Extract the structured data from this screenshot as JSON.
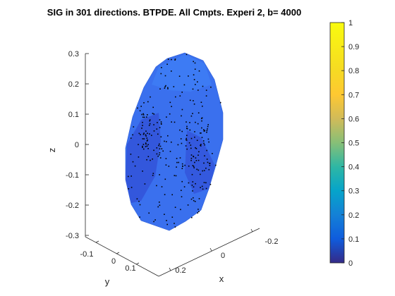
{
  "chart_data": {
    "type": "3d-surface-scatter",
    "title": "SIG in 301 directions. BTPDE. All Cmpts. Experi 2, b= 4000",
    "xlabel": "x",
    "ylabel": "y",
    "zlabel": "z",
    "x_ticks": [
      "-0.2",
      "0",
      "0.2"
    ],
    "y_ticks": [
      "-0.1",
      "0",
      "0.1"
    ],
    "z_ticks": [
      "0.3",
      "0.2",
      "0.1",
      "0",
      "-0.1",
      "-0.2",
      "-0.3"
    ],
    "colorbar": {
      "range": [
        0,
        1
      ],
      "colormap": "parula",
      "ticks": [
        "1",
        "0.9",
        "0.8",
        "0.7",
        "0.6",
        "0.5",
        "0.4",
        "0.3",
        "0.2",
        "0.1",
        "0"
      ]
    },
    "n_directions": 301,
    "surface_color_range": [
      0.12,
      0.25
    ],
    "colors": {
      "surface_main": "#3a70ee",
      "surface_dark": "#3352d8",
      "surface_light": "#3f80f6",
      "points": "#000000"
    }
  }
}
